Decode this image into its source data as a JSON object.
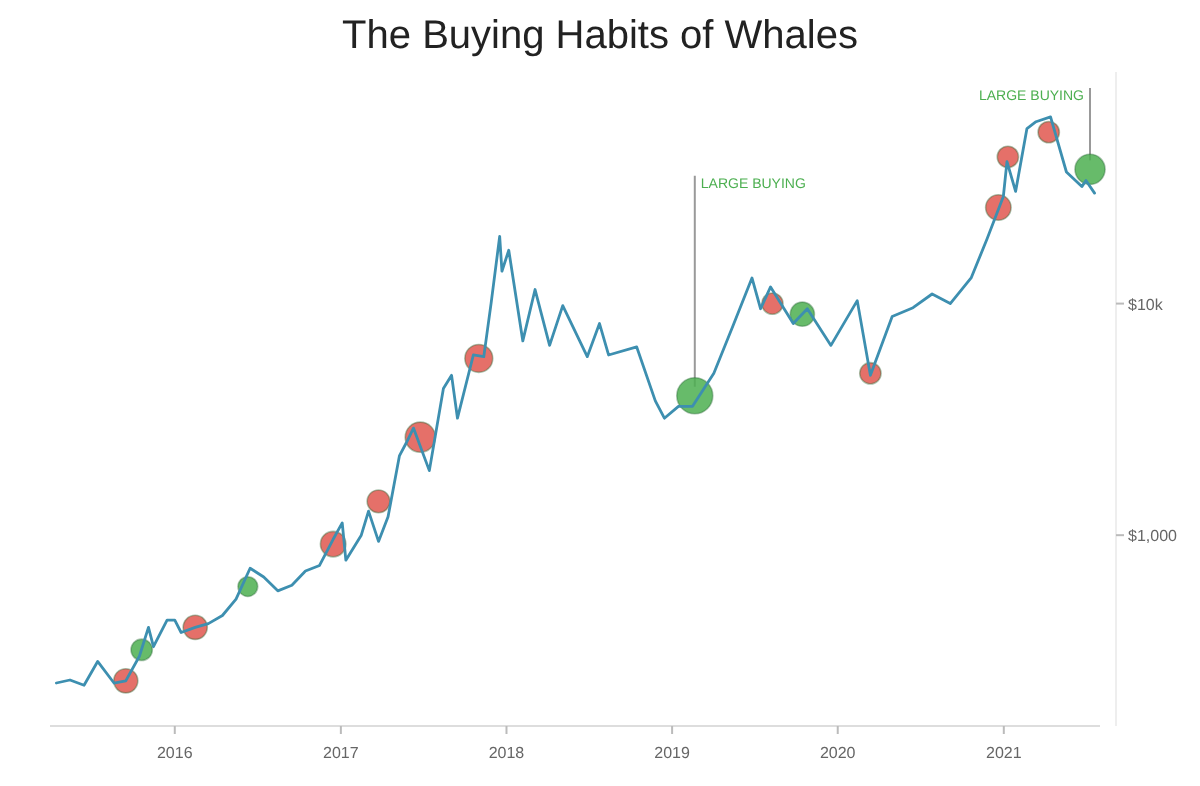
{
  "chart_data": {
    "type": "line",
    "title": "The Buying Habits of Whales",
    "log": "y",
    "grid": false,
    "xlim": [
      "2015-04-01",
      "2021-08-01"
    ],
    "xticks": [
      {
        "value": "2016",
        "label": "2016"
      },
      {
        "value": "2017",
        "label": "2017"
      },
      {
        "value": "2018",
        "label": "2018"
      },
      {
        "value": "2019",
        "label": "2019"
      },
      {
        "value": "2020",
        "label": "2020"
      },
      {
        "value": "2021",
        "label": "2021"
      }
    ],
    "ylim": [
      150,
      100000
    ],
    "yticks": [
      {
        "value": 1000,
        "label": "$1,000"
      },
      {
        "value": 10000,
        "label": "$10k"
      }
    ],
    "series": [
      {
        "color": "#3d8fb0",
        "x": [
          "2015-04-15",
          "2015-05-15",
          "2015-06-15",
          "2015-07-15",
          "2015-08-20",
          "2015-09-15",
          "2015-10-15",
          "2015-11-04",
          "2015-11-15",
          "2015-12-15",
          "2016-01-01",
          "2016-01-15",
          "2016-02-15",
          "2016-03-15",
          "2016-04-15",
          "2016-05-15",
          "2016-06-15",
          "2016-07-15",
          "2016-08-15",
          "2016-09-15",
          "2016-10-15",
          "2016-11-15",
          "2016-12-15",
          "2017-01-04",
          "2017-01-12",
          "2017-02-15",
          "2017-03-03",
          "2017-03-25",
          "2017-04-15",
          "2017-05-10",
          "2017-05-25",
          "2017-06-10",
          "2017-07-15",
          "2017-08-15",
          "2017-09-02",
          "2017-09-15",
          "2017-10-20",
          "2017-11-12",
          "2017-11-28",
          "2017-12-17",
          "2017-12-22",
          "2018-01-06",
          "2018-02-06",
          "2018-03-05",
          "2018-04-06",
          "2018-05-05",
          "2018-06-28",
          "2018-07-25",
          "2018-08-14",
          "2018-10-15",
          "2018-11-25",
          "2018-12-15",
          "2019-01-15",
          "2019-02-15",
          "2019-04-03",
          "2019-05-15",
          "2019-06-26",
          "2019-07-15",
          "2019-08-06",
          "2019-09-25",
          "2019-10-26",
          "2019-12-17",
          "2020-02-13",
          "2020-03-13",
          "2020-04-30",
          "2020-06-15",
          "2020-07-27",
          "2020-09-05",
          "2020-10-21",
          "2020-11-25",
          "2020-12-31",
          "2021-01-08",
          "2021-01-27",
          "2021-02-21",
          "2021-03-13",
          "2021-04-14",
          "2021-05-19",
          "2021-06-22",
          "2021-07-01",
          "2021-07-20"
        ],
        "values": [
          230,
          237,
          225,
          285,
          230,
          235,
          300,
          400,
          330,
          430,
          430,
          380,
          400,
          415,
          450,
          530,
          720,
          660,
          575,
          608,
          700,
          740,
          960,
          1130,
          780,
          1000,
          1270,
          940,
          1200,
          2200,
          2500,
          2900,
          1900,
          4300,
          4900,
          3200,
          6000,
          5900,
          10000,
          19500,
          13800,
          17000,
          6900,
          11500,
          6600,
          9800,
          5900,
          8200,
          6000,
          6500,
          3800,
          3200,
          3600,
          3600,
          5000,
          8000,
          12900,
          9500,
          11800,
          8200,
          9500,
          6600,
          10300,
          4900,
          8800,
          9600,
          11000,
          10000,
          12900,
          19000,
          29000,
          41000,
          30500,
          57000,
          61000,
          64000,
          37000,
          32000,
          34000,
          30000
        ]
      },
      {
        "type": "bubble",
        "color": "#e0574f",
        "x": [
          "2015-09-15",
          "2016-02-15",
          "2016-12-15",
          "2017-03-25",
          "2017-06-25",
          "2017-11-01",
          "2019-08-10",
          "2020-03-13",
          "2020-12-20",
          "2021-01-10",
          "2021-04-10"
        ],
        "values": [
          235,
          400,
          915,
          1400,
          2650,
          5800,
          10000,
          5000,
          26000,
          43000,
          55000
        ],
        "sizes": [
          0.45,
          0.45,
          0.5,
          0.4,
          0.7,
          0.6,
          0.35,
          0.35,
          0.5,
          0.35,
          0.35
        ]
      },
      {
        "type": "bubble",
        "color": "#4caf50",
        "x": [
          "2015-10-20",
          "2016-06-10",
          "2019-02-20",
          "2019-10-15",
          "2021-07-10"
        ],
        "values": [
          320,
          600,
          4000,
          9000,
          38000
        ],
        "sizes": [
          0.35,
          0.3,
          1,
          0.45,
          0.7
        ]
      }
    ],
    "annotations": [
      {
        "text": "LARGE BUYING",
        "x": "2019-02-20",
        "y": 4000
      },
      {
        "text": "LARGE BUYING",
        "x": "2021-07-10",
        "y": 38000
      }
    ]
  }
}
